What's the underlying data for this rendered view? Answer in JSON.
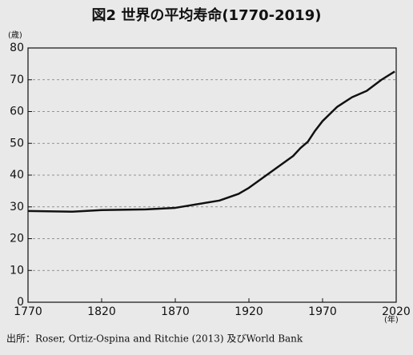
{
  "chart_data": {
    "type": "line",
    "title": "図2  世界の平均寿命(1770-2019)",
    "y_label": "(歳)",
    "x_label": "(年)",
    "source": "出所：Roser, Ortiz-Ospina and Ritchie (2013) 及びWorld Bank",
    "x": [
      1770,
      1800,
      1820,
      1850,
      1870,
      1900,
      1913,
      1920,
      1950,
      1955,
      1960,
      1965,
      1970,
      1980,
      1990,
      2000,
      2010,
      2019
    ],
    "series": [
      {
        "color": "#111111",
        "values": [
          28.7,
          28.5,
          29,
          29.2,
          29.7,
          32,
          34.1,
          36,
          46,
          48.5,
          50.5,
          54,
          57,
          61.5,
          64.5,
          66.5,
          70,
          72.6
        ]
      }
    ],
    "xlim": [
      1770,
      2020
    ],
    "xticks": [
      1770,
      1820,
      1870,
      1920,
      1970,
      2020
    ],
    "ylim": [
      0,
      80
    ],
    "yticks": [
      0,
      10,
      20,
      30,
      40,
      50,
      60,
      70,
      80
    ],
    "grid": true
  }
}
